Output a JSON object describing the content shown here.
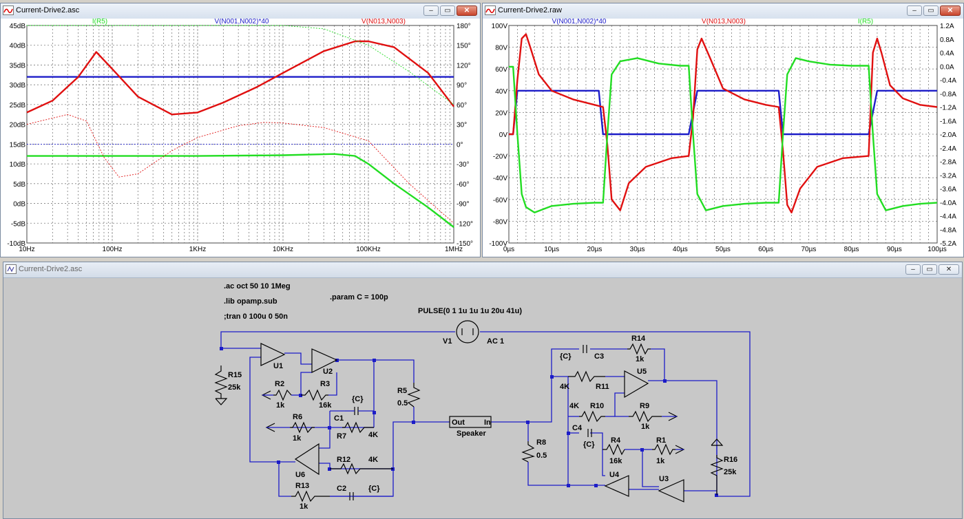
{
  "windows": {
    "ac": {
      "title": "Current-Drive2.asc"
    },
    "tran": {
      "title": "Current-Drive2.raw"
    },
    "schematic": {
      "title": "Current-Drive2.asc"
    }
  },
  "colors": {
    "green": "#22dd22",
    "blue": "#1c1cc8",
    "red": "#e01010",
    "grid": "#7a7a7a"
  },
  "chart_data": [
    {
      "type": "line",
      "title": "",
      "x_scale": "log",
      "x_ticks": [
        "10Hz",
        "100Hz",
        "1KHz",
        "10KHz",
        "100KHz",
        "1MHz"
      ],
      "xlim": [
        10,
        1000000
      ],
      "y_left_ticks": [
        "45dB",
        "40dB",
        "35dB",
        "30dB",
        "25dB",
        "20dB",
        "15dB",
        "10dB",
        "5dB",
        "0dB",
        "-5dB",
        "-10dB"
      ],
      "y_left_lim": [
        -10,
        45
      ],
      "y_right_ticks": [
        "180°",
        "150°",
        "120°",
        "90°",
        "60°",
        "30°",
        "0°",
        "-30°",
        "-60°",
        "-90°",
        "-120°",
        "-150°"
      ],
      "y_right_lim": [
        -150,
        180
      ],
      "series": [
        {
          "name": "I(R5)",
          "color": "green",
          "kind": "magnitude",
          "x": [
            10,
            100,
            1000,
            10000,
            40000,
            70000,
            100000,
            200000,
            500000,
            1000000
          ],
          "y": [
            12,
            12,
            12,
            12.2,
            12.5,
            12,
            10,
            5,
            -1,
            -6
          ]
        },
        {
          "name": "V(N001,N002)*40",
          "color": "blue",
          "kind": "magnitude",
          "x": [
            10,
            1000000
          ],
          "y": [
            32,
            32
          ]
        },
        {
          "name": "V(N013,N003)",
          "color": "red",
          "kind": "magnitude",
          "x": [
            10,
            20,
            40,
            65,
            100,
            200,
            500,
            1000,
            2000,
            5000,
            10000,
            30000,
            70000,
            100000,
            200000,
            500000,
            1000000
          ],
          "y": [
            23,
            26,
            32,
            38.3,
            34,
            27,
            22.5,
            23,
            25.5,
            29.5,
            33,
            38.5,
            41,
            41,
            39.5,
            33,
            24.5
          ]
        },
        {
          "name": "I(R5) phase",
          "color": "green",
          "kind": "phase",
          "x": [
            10,
            1000,
            10000,
            30000,
            100000,
            300000,
            1000000
          ],
          "y": [
            180,
            180,
            180,
            175,
            150,
            110,
            60
          ]
        },
        {
          "name": "V(N001,N002)*40 phase",
          "color": "blue",
          "kind": "phase",
          "x": [
            10,
            1000000
          ],
          "y": [
            0,
            0
          ]
        },
        {
          "name": "V(N013,N003) phase",
          "color": "red",
          "kind": "phase",
          "x": [
            10,
            30,
            50,
            80,
            120,
            200,
            500,
            1000,
            3000,
            6000,
            10000,
            30000,
            100000,
            300000,
            1000000
          ],
          "y": [
            30,
            45,
            35,
            -20,
            -50,
            -45,
            -10,
            10,
            28,
            33,
            32,
            25,
            5,
            -60,
            -120
          ]
        }
      ]
    },
    {
      "type": "line",
      "title": "",
      "x_ticks": [
        "0µs",
        "10µs",
        "20µs",
        "30µs",
        "40µs",
        "50µs",
        "60µs",
        "70µs",
        "80µs",
        "90µs",
        "100µs"
      ],
      "xlim": [
        0,
        100
      ],
      "y_left_ticks": [
        "100V",
        "80V",
        "60V",
        "40V",
        "20V",
        "0V",
        "-20V",
        "-40V",
        "-60V",
        "-80V",
        "-100V"
      ],
      "y_left_lim": [
        -100,
        100
      ],
      "y_right_ticks": [
        "1.2A",
        "0.8A",
        "0.4A",
        "0.0A",
        "-0.4A",
        "-0.8A",
        "-1.2A",
        "-1.6A",
        "-2.0A",
        "-2.4A",
        "-2.8A",
        "-3.2A",
        "-3.6A",
        "-4.0A",
        "-4.4A",
        "-4.8A",
        "-5.2A"
      ],
      "y_right_lim": [
        -5.2,
        1.2
      ],
      "series": [
        {
          "name": "V(N001,N002)*40",
          "color": "blue",
          "x": [
            0,
            1,
            2,
            21,
            22,
            42,
            43,
            44,
            63,
            64,
            84,
            85,
            86,
            100
          ],
          "y": [
            0,
            0,
            40,
            40,
            0,
            0,
            20,
            40,
            40,
            0,
            0,
            20,
            40,
            40
          ]
        },
        {
          "name": "V(N013,N003)",
          "color": "red",
          "x": [
            0,
            1,
            2,
            3,
            4,
            5,
            7,
            10,
            15,
            20,
            22,
            23,
            24,
            26,
            28,
            32,
            38,
            42,
            43,
            44,
            45,
            47,
            50,
            55,
            60,
            63,
            64,
            65,
            66,
            68,
            72,
            78,
            84,
            85,
            86,
            87,
            89,
            92,
            96,
            100
          ],
          "y": [
            0,
            0,
            50,
            88,
            92,
            80,
            55,
            40,
            32,
            27,
            25,
            -10,
            -60,
            -70,
            -45,
            -30,
            -22,
            -20,
            15,
            78,
            88,
            70,
            42,
            32,
            27,
            25,
            -15,
            -65,
            -72,
            -50,
            -30,
            -22,
            -20,
            75,
            88,
            75,
            45,
            33,
            27,
            25
          ]
        },
        {
          "name": "I(R5)",
          "color": "green",
          "x": [
            0,
            1,
            2,
            3,
            4,
            6,
            10,
            15,
            20,
            22,
            23,
            24,
            26,
            30,
            35,
            40,
            42,
            43,
            44,
            46,
            50,
            55,
            60,
            63,
            64,
            65,
            67,
            70,
            75,
            80,
            84,
            85,
            86,
            88,
            92,
            96,
            100
          ],
          "y": [
            62,
            62,
            0,
            -55,
            -67,
            -72,
            -66,
            -64,
            -63,
            -63,
            0,
            55,
            67,
            70,
            65,
            63,
            63,
            0,
            -55,
            -70,
            -66,
            -64,
            -63,
            -63,
            0,
            55,
            70,
            67,
            64,
            63,
            63,
            0,
            -55,
            -70,
            -66,
            -64,
            -63
          ]
        }
      ]
    }
  ],
  "schematic": {
    "directives": [
      ".ac oct 50 10 1Meg",
      ".lib opamp.sub",
      ";tran 0 100u 0 50n"
    ],
    "param": ".param C = 100p",
    "source_value": "PULSE(0 1 1u 1u 1u 20u 41u)",
    "source_ac": "AC 1",
    "labels": {
      "V1": "V1",
      "U1": "U1",
      "U2": "U2",
      "U3": "U3",
      "U4": "U4",
      "U5": "U5",
      "U6": "U6",
      "R1": "R1",
      "R1v": "1k",
      "R2": "R2",
      "R2v": "1k",
      "R3": "R3",
      "R3v": "16k",
      "R4": "R4",
      "R4v": "16k",
      "R5": "R5",
      "R5v": "0.5",
      "R6": "R6",
      "R6v": "1k",
      "R7": "R7",
      "R7v": "4K",
      "R8": "R8",
      "R8v": "0.5",
      "R9": "R9",
      "R9v": "1k",
      "R10": "R10",
      "R10v": "4K",
      "R11": "R11",
      "R11v": "4K",
      "R12": "R12",
      "R12v": "4K",
      "R13": "R13",
      "R13v": "1k",
      "R14": "R14",
      "R14v": "1k",
      "R15": "R15",
      "R15v": "25k",
      "R16": "R16",
      "R16v": "25k",
      "C1": "C1",
      "C1v": "{C}",
      "C2": "C2",
      "C2v": "{C}",
      "C3": "C3",
      "C3v": "{C}",
      "C4": "C4",
      "C4v": "{C}",
      "spk_out": "Out",
      "spk_in": "In",
      "spk_name": "Speaker"
    }
  }
}
